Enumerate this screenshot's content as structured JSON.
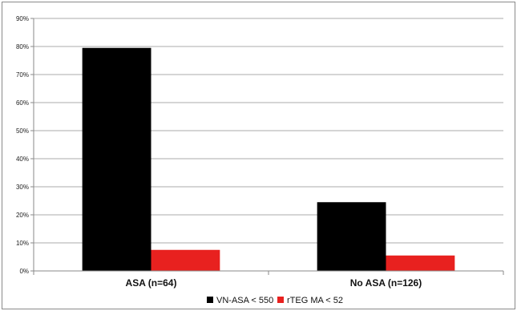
{
  "chart_data": {
    "type": "bar",
    "categories": [
      "ASA (n=64)",
      "No ASA (n=126)"
    ],
    "series": [
      {
        "name": "VN-ASA < 550",
        "values": [
          79.5,
          24.5
        ],
        "color": "#000000"
      },
      {
        "name": "rTEG MA < 52",
        "values": [
          7.5,
          5.5
        ],
        "color": "#e8211f"
      }
    ],
    "yticks": [
      "0%",
      "10%",
      "20%",
      "30%",
      "40%",
      "50%",
      "60%",
      "70%",
      "80%",
      "90%"
    ],
    "ylim": [
      0,
      90
    ],
    "grid": true,
    "legend_position": "bottom"
  }
}
